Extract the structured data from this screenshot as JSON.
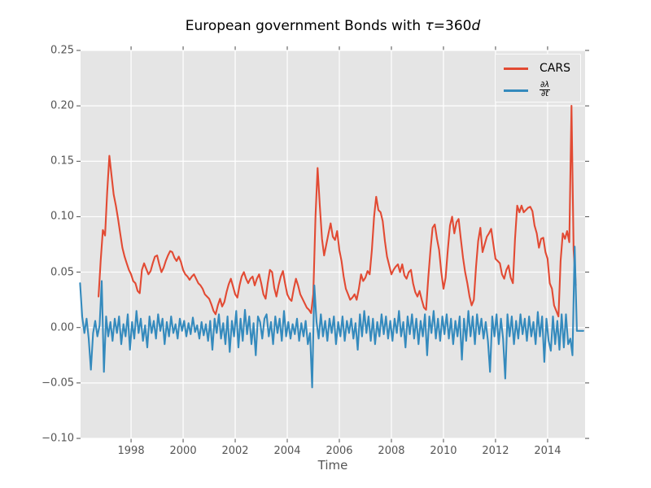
{
  "chart_data": {
    "type": "line",
    "title": "European government Bonds with τ=360d",
    "title_parts": {
      "main": "European government Bonds with ",
      "tau": "τ",
      "mid": "=360",
      "d": "d"
    },
    "xlabel": "Time",
    "x_ticks": [
      "1998",
      "2000",
      "2002",
      "2004",
      "2006",
      "2008",
      "2010",
      "2012",
      "2014"
    ],
    "y_ticks": [
      "0.25",
      "0.20",
      "0.15",
      "0.10",
      "0.05",
      "0.00",
      "−0.05",
      "−0.10"
    ],
    "xlim": [
      1996.06,
      2015.44
    ],
    "ylim": [
      -0.1,
      0.25
    ],
    "grid": true,
    "legend_position": "upper right",
    "colors": {
      "plot_background": "#e5e5e5",
      "grid": "#ffffff",
      "tick_text": "#555555",
      "tick_mark": "#4d4d4d",
      "title_text": "#000000"
    },
    "legend": {
      "items": [
        {
          "label": "CARS"
        },
        {
          "num": "∂λ",
          "den": "∂t"
        }
      ]
    },
    "series": [
      {
        "name": "CARS",
        "color": "#e24a33",
        "x_start": 1996.75,
        "x_step": 0.083333,
        "values": [
          0.028,
          0.06,
          0.088,
          0.083,
          0.122,
          0.155,
          0.137,
          0.12,
          0.11,
          0.098,
          0.085,
          0.072,
          0.064,
          0.058,
          0.052,
          0.048,
          0.042,
          0.04,
          0.033,
          0.031,
          0.052,
          0.058,
          0.053,
          0.048,
          0.051,
          0.058,
          0.064,
          0.065,
          0.057,
          0.05,
          0.054,
          0.06,
          0.065,
          0.069,
          0.068,
          0.063,
          0.06,
          0.064,
          0.059,
          0.052,
          0.048,
          0.046,
          0.043,
          0.046,
          0.048,
          0.044,
          0.04,
          0.038,
          0.035,
          0.03,
          0.028,
          0.026,
          0.021,
          0.015,
          0.012,
          0.02,
          0.026,
          0.019,
          0.023,
          0.032,
          0.039,
          0.044,
          0.037,
          0.03,
          0.027,
          0.038,
          0.046,
          0.05,
          0.044,
          0.04,
          0.044,
          0.046,
          0.038,
          0.044,
          0.048,
          0.04,
          0.03,
          0.026,
          0.04,
          0.052,
          0.05,
          0.036,
          0.028,
          0.038,
          0.046,
          0.051,
          0.04,
          0.03,
          0.026,
          0.024,
          0.035,
          0.044,
          0.038,
          0.03,
          0.026,
          0.022,
          0.018,
          0.016,
          0.013,
          0.03,
          0.1,
          0.144,
          0.11,
          0.08,
          0.065,
          0.075,
          0.085,
          0.094,
          0.082,
          0.079,
          0.087,
          0.07,
          0.06,
          0.046,
          0.035,
          0.03,
          0.025,
          0.027,
          0.03,
          0.025,
          0.035,
          0.048,
          0.042,
          0.045,
          0.051,
          0.048,
          0.07,
          0.1,
          0.118,
          0.106,
          0.104,
          0.096,
          0.078,
          0.064,
          0.056,
          0.048,
          0.052,
          0.055,
          0.057,
          0.05,
          0.057,
          0.047,
          0.044,
          0.05,
          0.052,
          0.04,
          0.032,
          0.028,
          0.033,
          0.025,
          0.018,
          0.016,
          0.045,
          0.07,
          0.09,
          0.093,
          0.08,
          0.07,
          0.05,
          0.035,
          0.045,
          0.07,
          0.092,
          0.1,
          0.085,
          0.095,
          0.098,
          0.08,
          0.063,
          0.05,
          0.04,
          0.028,
          0.02,
          0.025,
          0.055,
          0.078,
          0.09,
          0.068,
          0.075,
          0.082,
          0.085,
          0.089,
          0.075,
          0.062,
          0.06,
          0.058,
          0.048,
          0.044,
          0.052,
          0.056,
          0.045,
          0.04,
          0.08,
          0.11,
          0.104,
          0.11,
          0.104,
          0.106,
          0.108,
          0.109,
          0.105,
          0.092,
          0.085,
          0.072,
          0.08,
          0.081,
          0.068,
          0.062,
          0.04,
          0.035,
          0.02,
          0.015,
          0.01,
          0.06,
          0.085,
          0.08,
          0.087,
          0.077,
          0.2,
          0.07,
          0.038
        ]
      },
      {
        "name": "∂λ/∂t",
        "color": "#348abd",
        "x_start": 1996.04,
        "x_step": 0.083333,
        "values": [
          0.04,
          0.01,
          -0.005,
          0.008,
          -0.01,
          -0.038,
          -0.005,
          0.006,
          -0.008,
          0.002,
          0.042,
          -0.04,
          0.01,
          -0.008,
          0.005,
          -0.012,
          0.008,
          -0.005,
          0.01,
          -0.015,
          0.003,
          -0.008,
          0.012,
          -0.02,
          0.005,
          -0.01,
          0.015,
          -0.005,
          0.008,
          -0.012,
          0.002,
          -0.018,
          0.01,
          -0.005,
          0.006,
          -0.01,
          0.012,
          -0.003,
          0.008,
          -0.015,
          0.005,
          -0.008,
          0.01,
          -0.005,
          0.003,
          -0.01,
          0.008,
          -0.003,
          0.006,
          -0.008,
          0.004,
          -0.006,
          0.009,
          -0.004,
          0.002,
          -0.01,
          0.005,
          -0.007,
          0.003,
          -0.012,
          0.006,
          -0.02,
          0.008,
          -0.005,
          0.012,
          -0.01,
          0.004,
          -0.015,
          0.01,
          -0.022,
          0.006,
          -0.008,
          0.015,
          -0.018,
          0.008,
          -0.012,
          0.016,
          -0.006,
          0.01,
          -0.015,
          0.004,
          -0.025,
          0.01,
          0.005,
          -0.01,
          0.008,
          0.012,
          -0.008,
          0.005,
          -0.015,
          0.01,
          -0.005,
          0.008,
          -0.012,
          0.015,
          -0.008,
          0.005,
          -0.01,
          0.003,
          -0.006,
          0.008,
          -0.012,
          0.004,
          -0.008,
          0.006,
          -0.015,
          -0.005,
          -0.054,
          0.038,
          0.005,
          -0.01,
          0.012,
          -0.008,
          0.006,
          -0.012,
          0.008,
          -0.005,
          0.01,
          -0.015,
          0.005,
          -0.008,
          0.01,
          -0.012,
          0.006,
          -0.005,
          0.008,
          -0.01,
          0.004,
          -0.02,
          0.012,
          -0.008,
          0.015,
          -0.005,
          0.01,
          -0.012,
          0.008,
          -0.015,
          0.005,
          -0.008,
          0.012,
          -0.006,
          0.01,
          -0.01,
          0.006,
          -0.012,
          0.008,
          -0.005,
          0.015,
          -0.008,
          0.005,
          -0.018,
          0.01,
          -0.006,
          0.012,
          -0.01,
          0.008,
          -0.015,
          0.006,
          -0.008,
          0.012,
          -0.025,
          0.01,
          -0.005,
          0.015,
          -0.01,
          0.008,
          -0.012,
          0.01,
          -0.006,
          0.012,
          -0.01,
          0.008,
          -0.015,
          0.006,
          -0.008,
          0.01,
          -0.029,
          0.008,
          -0.012,
          0.015,
          -0.008,
          0.01,
          -0.015,
          0.012,
          -0.006,
          0.008,
          -0.01,
          0.005,
          -0.012,
          -0.04,
          0.01,
          -0.008,
          0.012,
          -0.015,
          0.008,
          -0.01,
          -0.046,
          0.012,
          -0.008,
          0.01,
          -0.015,
          0.006,
          -0.01,
          0.012,
          -0.006,
          0.008,
          -0.012,
          0.01,
          -0.008,
          0.005,
          -0.015,
          0.014,
          -0.008,
          0.01,
          -0.031,
          0.008,
          -0.012,
          -0.021,
          0.01,
          -0.015,
          0.006,
          -0.02,
          0.012,
          -0.018,
          0.012,
          -0.015,
          -0.01,
          -0.025,
          0.073,
          -0.003,
          -0.003,
          -0.003,
          -0.003
        ]
      }
    ]
  }
}
